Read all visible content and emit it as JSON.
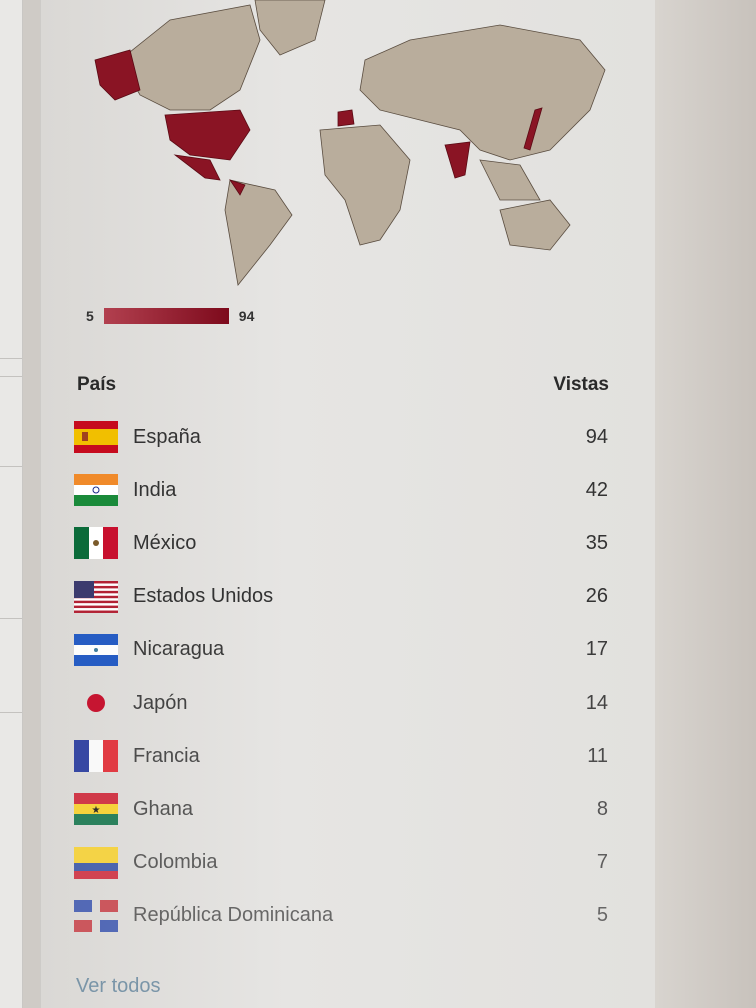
{
  "legend": {
    "min": "5",
    "max": "94",
    "color_low": "#b2404f",
    "color_high": "#7d0a1c"
  },
  "table": {
    "col_country": "País",
    "col_views": "Vistas",
    "rows": [
      {
        "country": "España",
        "views": "94",
        "flag": "spain-flag"
      },
      {
        "country": "India",
        "views": "42",
        "flag": "india-flag"
      },
      {
        "country": "México",
        "views": "35",
        "flag": "mexico-flag"
      },
      {
        "country": "Estados Unidos",
        "views": "26",
        "flag": "usa-flag"
      },
      {
        "country": "Nicaragua",
        "views": "17",
        "flag": "nicaragua-flag"
      },
      {
        "country": "Japón",
        "views": "14",
        "flag": "japan-flag"
      },
      {
        "country": "Francia",
        "views": "11",
        "flag": "france-flag"
      },
      {
        "country": "Ghana",
        "views": "8",
        "flag": "ghana-flag"
      },
      {
        "country": "Colombia",
        "views": "7",
        "flag": "colombia-flag"
      },
      {
        "country": "República Dominicana",
        "views": "5",
        "flag": "dominican-republic-flag"
      }
    ]
  },
  "view_all": "Ver todos"
}
